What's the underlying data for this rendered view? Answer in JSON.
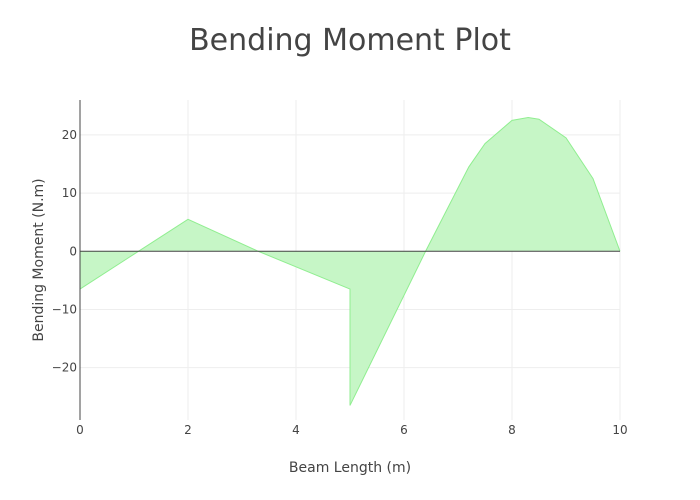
{
  "chart_data": {
    "type": "area",
    "title": "Bending Moment Plot",
    "xlabel": "Beam Length (m)",
    "ylabel": "Bending Moment (N.m)",
    "xlim": [
      0,
      10
    ],
    "ylim": [
      -29,
      26
    ],
    "x_ticks": [
      0,
      2,
      4,
      6,
      8,
      10
    ],
    "x_tick_labels": [
      "0",
      "2",
      "4",
      "6",
      "8",
      "10"
    ],
    "y_ticks": [
      -20,
      -10,
      0,
      10,
      20
    ],
    "y_tick_labels": [
      "−20",
      "−10",
      "0",
      "10",
      "20"
    ],
    "grid": true,
    "legend": false,
    "fill_color": "#c6f6c6",
    "line_color": "#90ee90",
    "series": [
      {
        "x": [
          0,
          1.0,
          2,
          3.3,
          5,
          5,
          6.4,
          7.2,
          7.5,
          8.0,
          8.3,
          8.5,
          9.0,
          9.5,
          10
        ],
        "y": [
          -6.5,
          -0.5,
          5.5,
          0,
          -6.5,
          -26.5,
          0,
          14.5,
          18.5,
          22.5,
          23,
          22.7,
          19.5,
          12.5,
          0
        ]
      }
    ]
  }
}
